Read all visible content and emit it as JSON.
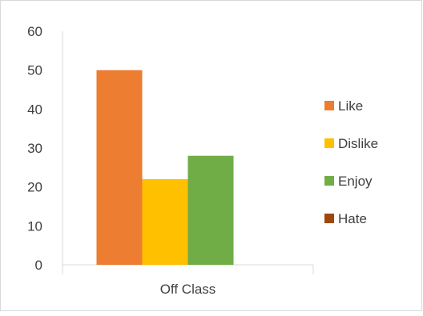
{
  "chart_data": {
    "type": "bar",
    "categories": [
      "Off Class"
    ],
    "series": [
      {
        "name": "Like",
        "values": [
          50
        ],
        "color": "#ED7D31"
      },
      {
        "name": "Dislike",
        "values": [
          22
        ],
        "color": "#FFC000"
      },
      {
        "name": "Enjoy",
        "values": [
          28
        ],
        "color": "#70AD47"
      },
      {
        "name": "Hate",
        "values": [
          0
        ],
        "color": "#9E480E"
      }
    ],
    "y_ticks": [
      "0",
      "10",
      "20",
      "30",
      "40",
      "50",
      "60"
    ],
    "ylim": [
      0,
      60
    ],
    "grid": false,
    "legend_position": "right",
    "title": "",
    "xlabel": "",
    "ylabel": ""
  }
}
